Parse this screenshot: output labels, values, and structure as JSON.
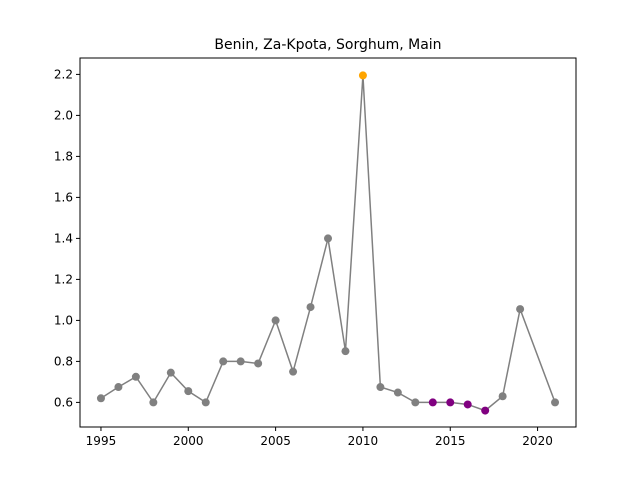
{
  "chart_data": {
    "type": "line",
    "title": "Benin, Za-Kpota, Sorghum, Main",
    "xlabel": "",
    "ylabel": "",
    "xlim": [
      1993.8,
      2022.2
    ],
    "ylim": [
      0.48,
      2.28
    ],
    "x_ticks": [
      1995,
      2000,
      2005,
      2010,
      2015,
      2020
    ],
    "y_ticks": [
      0.6,
      0.8,
      1.0,
      1.2,
      1.4,
      1.6,
      1.8,
      2.0,
      2.2
    ],
    "grid": false,
    "line_color": "#808080",
    "series": [
      {
        "x": [
          1995,
          1996,
          1997,
          1998,
          1999,
          2000,
          2001,
          2002,
          2003,
          2004,
          2005,
          2006,
          2007,
          2008,
          2009,
          2010,
          2011,
          2012,
          2013,
          2014,
          2015,
          2016,
          2017,
          2018,
          2019,
          2021
        ],
        "values": [
          0.62,
          0.675,
          0.725,
          0.6,
          0.745,
          0.655,
          0.6,
          0.8,
          0.8,
          0.79,
          1.0,
          0.75,
          1.065,
          1.4,
          0.85,
          2.195,
          0.675,
          0.648,
          0.6,
          0.6,
          0.6,
          0.59,
          0.56,
          0.63,
          1.055,
          0.6
        ],
        "point_colors": [
          "#808080",
          "#808080",
          "#808080",
          "#808080",
          "#808080",
          "#808080",
          "#808080",
          "#808080",
          "#808080",
          "#808080",
          "#808080",
          "#808080",
          "#808080",
          "#808080",
          "#808080",
          "#ffa500",
          "#808080",
          "#808080",
          "#808080",
          "#800080",
          "#800080",
          "#800080",
          "#800080",
          "#808080",
          "#808080",
          "#808080"
        ]
      }
    ]
  }
}
